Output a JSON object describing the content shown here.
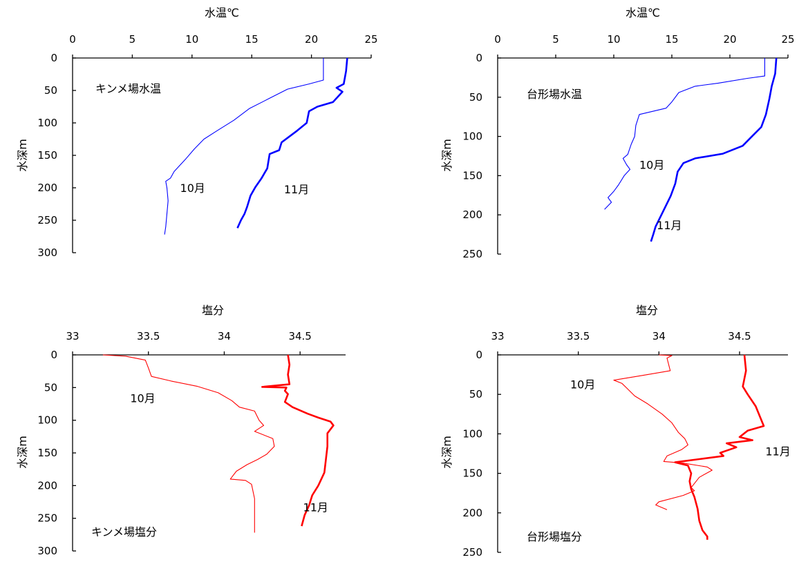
{
  "chart_data": [
    {
      "id": "kinme-temp",
      "type": "line",
      "title": "キンメ場水温",
      "xlabel": "水温℃",
      "ylabel": "水深m",
      "xlim": [
        0,
        25
      ],
      "ylim": [
        300,
        0
      ],
      "xticks": [
        0,
        5,
        10,
        15,
        20,
        25
      ],
      "yticks": [
        0,
        50,
        100,
        150,
        200,
        250,
        300
      ],
      "x_axis_position": "top",
      "grid": false,
      "color": "#0000ff",
      "series": [
        {
          "name": "10月",
          "values": [
            [
              21,
              0
            ],
            [
              21,
              34
            ],
            [
              19.8,
              40
            ],
            [
              18,
              48
            ],
            [
              16.5,
              62
            ],
            [
              14.8,
              78
            ],
            [
              13.5,
              96
            ],
            [
              12.1,
              112
            ],
            [
              11,
              125
            ],
            [
              10.2,
              140
            ],
            [
              9.5,
              155
            ],
            [
              9,
              165
            ],
            [
              8.5,
              175
            ],
            [
              8.2,
              185
            ],
            [
              7.8,
              190
            ],
            [
              7.9,
              200
            ],
            [
              8,
              220
            ],
            [
              7.9,
              240
            ],
            [
              7.8,
              260
            ],
            [
              7.7,
              272
            ]
          ]
        },
        {
          "name": "11月",
          "values": [
            [
              23,
              0
            ],
            [
              22.9,
              20
            ],
            [
              22.7,
              40
            ],
            [
              22.1,
              46
            ],
            [
              22.6,
              52
            ],
            [
              21.8,
              68
            ],
            [
              20.5,
              75
            ],
            [
              19.8,
              82
            ],
            [
              19.6,
              100
            ],
            [
              18.8,
              112
            ],
            [
              17.5,
              130
            ],
            [
              17.3,
              142
            ],
            [
              16.5,
              148
            ],
            [
              16.3,
              170
            ],
            [
              15.8,
              186
            ],
            [
              15.3,
              199
            ],
            [
              14.9,
              212
            ],
            [
              14.6,
              230
            ],
            [
              14.4,
              240
            ],
            [
              14.1,
              250
            ],
            [
              13.8,
              262
            ]
          ]
        }
      ],
      "annotations": [
        {
          "text": "10月",
          "x": 9,
          "y": 200
        },
        {
          "text": "11月",
          "x": 17.7,
          "y": 202
        }
      ]
    },
    {
      "id": "daikei-temp",
      "type": "line",
      "title": "台形場水温",
      "xlabel": "水温℃",
      "ylabel": "水深m",
      "xlim": [
        0,
        25
      ],
      "ylim": [
        250,
        0
      ],
      "xticks": [
        0,
        5,
        10,
        15,
        20,
        25
      ],
      "yticks": [
        0,
        50,
        100,
        150,
        200,
        250
      ],
      "x_axis_position": "top",
      "grid": false,
      "color": "#0000ff",
      "series": [
        {
          "name": "10月",
          "values": [
            [
              23,
              0
            ],
            [
              23,
              23
            ],
            [
              21.5,
              26
            ],
            [
              19,
              32
            ],
            [
              17,
              36
            ],
            [
              15.6,
              44
            ],
            [
              15,
              56
            ],
            [
              14.5,
              64
            ],
            [
              12.2,
              72
            ],
            [
              11.9,
              86
            ],
            [
              11.8,
              100
            ],
            [
              11.5,
              110
            ],
            [
              11.2,
              123
            ],
            [
              10.8,
              128
            ],
            [
              11.1,
              136
            ],
            [
              11.4,
              142
            ],
            [
              10.9,
              150
            ],
            [
              10.4,
              162
            ],
            [
              10,
              170
            ],
            [
              9.5,
              178
            ],
            [
              9.8,
              184
            ],
            [
              9.2,
              193
            ]
          ]
        },
        {
          "name": "11月",
          "values": [
            [
              24,
              0
            ],
            [
              23.9,
              20
            ],
            [
              23.6,
              36
            ],
            [
              23.4,
              52
            ],
            [
              23.1,
              72
            ],
            [
              22.7,
              88
            ],
            [
              21.9,
              100
            ],
            [
              21.1,
              112
            ],
            [
              19.4,
              122
            ],
            [
              17,
              128
            ],
            [
              16,
              134
            ],
            [
              15.5,
              145
            ],
            [
              15.3,
              160
            ],
            [
              14.9,
              176
            ],
            [
              14.5,
              188
            ],
            [
              14.1,
              200
            ],
            [
              13.6,
              215
            ],
            [
              13.4,
              225
            ],
            [
              13.2,
              234
            ]
          ]
        }
      ],
      "annotations": [
        {
          "text": "10月",
          "x": 12.2,
          "y": 136
        },
        {
          "text": "11月",
          "x": 13.7,
          "y": 213
        }
      ]
    },
    {
      "id": "kinme-sal",
      "type": "line",
      "title": "キンメ場塩分",
      "xlabel": "塩分",
      "ylabel": "水深m",
      "xlim": [
        33,
        34.8
      ],
      "ylim": [
        300,
        0
      ],
      "xticks": [
        33,
        33.5,
        34,
        34.5
      ],
      "yticks": [
        0,
        50,
        100,
        150,
        200,
        250,
        300
      ],
      "x_axis_position": "top",
      "grid": false,
      "color": "#ff0000",
      "series": [
        {
          "name": "10月",
          "values": [
            [
              33.2,
              0
            ],
            [
              33.35,
              2
            ],
            [
              33.48,
              8
            ],
            [
              33.5,
              20
            ],
            [
              33.52,
              33
            ],
            [
              33.65,
              40
            ],
            [
              33.82,
              48
            ],
            [
              33.96,
              58
            ],
            [
              34.05,
              70
            ],
            [
              34.1,
              80
            ],
            [
              34.2,
              86
            ],
            [
              34.23,
              100
            ],
            [
              34.26,
              108
            ],
            [
              34.2,
              117
            ],
            [
              34.32,
              128
            ],
            [
              34.33,
              140
            ],
            [
              34.28,
              152
            ],
            [
              34.22,
              160
            ],
            [
              34.15,
              168
            ],
            [
              34.08,
              178
            ],
            [
              34.04,
              190
            ],
            [
              34.14,
              192
            ],
            [
              34.18,
              198
            ],
            [
              34.2,
              220
            ],
            [
              34.2,
              250
            ],
            [
              34.2,
              272
            ]
          ]
        },
        {
          "name": "11月",
          "values": [
            [
              34.42,
              0
            ],
            [
              34.43,
              15
            ],
            [
              34.42,
              30
            ],
            [
              34.43,
              45
            ],
            [
              34.25,
              49
            ],
            [
              34.41,
              50
            ],
            [
              34.4,
              55
            ],
            [
              34.42,
              60
            ],
            [
              34.4,
              72
            ],
            [
              34.45,
              80
            ],
            [
              34.55,
              90
            ],
            [
              34.62,
              96
            ],
            [
              34.7,
              102
            ],
            [
              34.72,
              108
            ],
            [
              34.68,
              120
            ],
            [
              34.68,
              140
            ],
            [
              34.67,
              160
            ],
            [
              34.66,
              180
            ],
            [
              34.62,
              200
            ],
            [
              34.58,
              215
            ],
            [
              34.56,
              230
            ],
            [
              34.53,
              245
            ],
            [
              34.51,
              262
            ]
          ]
        }
      ],
      "annotations": [
        {
          "text": "10月",
          "x": 33.38,
          "y": 66
        },
        {
          "text": "11月",
          "x": 34.52,
          "y": 233
        }
      ]
    },
    {
      "id": "daikei-sal",
      "type": "line",
      "title": "台形場塩分",
      "xlabel": "塩分",
      "ylabel": "水深m",
      "xlim": [
        33,
        34.8
      ],
      "ylim": [
        250,
        0
      ],
      "xticks": [
        33,
        33.5,
        34,
        34.5
      ],
      "yticks": [
        0,
        50,
        100,
        150,
        200,
        250
      ],
      "x_axis_position": "top",
      "grid": false,
      "color": "#ff0000",
      "series": [
        {
          "name": "10月",
          "values": [
            [
              34,
              0
            ],
            [
              34.08,
              1
            ],
            [
              34.05,
              4
            ],
            [
              34.07,
              20
            ],
            [
              33.9,
              26
            ],
            [
              33.78,
              30
            ],
            [
              33.72,
              32
            ],
            [
              33.77,
              36
            ],
            [
              33.8,
              42
            ],
            [
              33.85,
              52
            ],
            [
              33.93,
              62
            ],
            [
              34.02,
              75
            ],
            [
              34.08,
              86
            ],
            [
              34.12,
              98
            ],
            [
              34.16,
              106
            ],
            [
              34.18,
              114
            ],
            [
              34.14,
              120
            ],
            [
              34.05,
              128
            ],
            [
              34.03,
              135
            ],
            [
              34.15,
              137
            ],
            [
              34.3,
              142
            ],
            [
              34.33,
              146
            ],
            [
              34.25,
              155
            ],
            [
              34.2,
              168
            ],
            [
              34.22,
              172
            ],
            [
              34.15,
              178
            ],
            [
              34,
              186
            ],
            [
              33.98,
              190
            ],
            [
              34.05,
              196
            ]
          ]
        },
        {
          "name": "11月",
          "values": [
            [
              34.53,
              0
            ],
            [
              34.54,
              20
            ],
            [
              34.52,
              40
            ],
            [
              34.55,
              50
            ],
            [
              34.6,
              65
            ],
            [
              34.63,
              80
            ],
            [
              34.65,
              90
            ],
            [
              34.55,
              96
            ],
            [
              34.5,
              104
            ],
            [
              34.58,
              108
            ],
            [
              34.42,
              112
            ],
            [
              34.48,
              117
            ],
            [
              34.38,
              124
            ],
            [
              34.4,
              128
            ],
            [
              34.25,
              132
            ],
            [
              34.1,
              136
            ],
            [
              34.18,
              140
            ],
            [
              34.2,
              150
            ],
            [
              34.19,
              160
            ],
            [
              34.2,
              170
            ],
            [
              34.22,
              180
            ],
            [
              34.24,
              195
            ],
            [
              34.25,
              210
            ],
            [
              34.27,
              222
            ],
            [
              34.3,
              230
            ],
            [
              34.3,
              234
            ]
          ]
        }
      ],
      "annotations": [
        {
          "text": "10月",
          "x": 33.45,
          "y": 37
        },
        {
          "text": "11月",
          "x": 34.66,
          "y": 122
        }
      ]
    }
  ]
}
